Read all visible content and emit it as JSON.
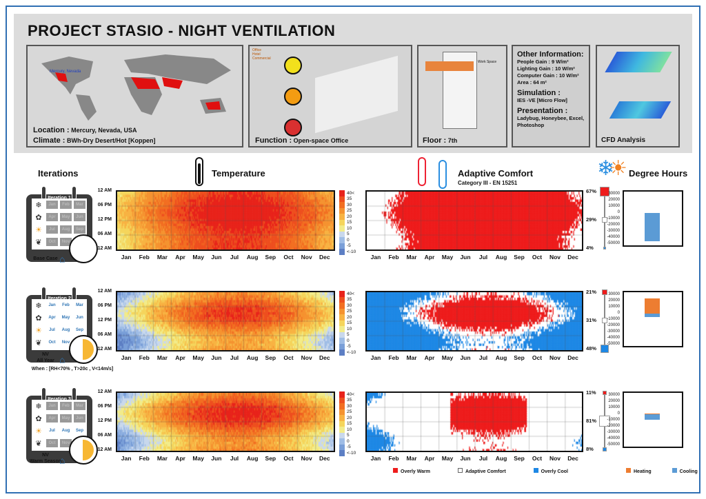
{
  "title": "PROJECT STASIO - NIGHT VENTILATION",
  "panels": {
    "location_label": "Location :",
    "location": "Mercury, Nevada, USA",
    "climate_label": "Climate :",
    "climate": "BWh-Dry Desert/Hot [Koppen]",
    "map_marker": "Mercury, Nevada",
    "function_label": "Function :",
    "function": "Open-space Office",
    "function_legend": [
      "Office",
      "Hotel",
      "Commercial"
    ],
    "floor_label": "Floor :",
    "floor": "7th",
    "floor_tag": "Work Space",
    "other_title": "Other Information:",
    "other": [
      "People Gain : 9 W/m²",
      "Lighting Gain : 10 W/m²",
      "Computer Gain : 10 W/m²",
      "Area : 64 m²"
    ],
    "simulation_title": "Simulation :",
    "simulation": "IES -VE   [Micro Flow]",
    "presentation_title": "Presentation :",
    "presentation": "Ladybug, Honeybee, Excel, Photoshop",
    "cfd_label": "CFD Analysis"
  },
  "sections": {
    "iterations": "Iterations",
    "temperature": "Temperature",
    "comfort": "Adaptive Comfort",
    "comfort_sub": "Category III - EN  15251",
    "degree": "Degree Hours"
  },
  "iterations": [
    {
      "title": "Iteration 1",
      "label": "Base Case",
      "label2": "",
      "active_months": []
    },
    {
      "title": "Iteration 2",
      "label": "NV",
      "label2": "All Year",
      "when": "When : [RH<70% , T>20c , V<14m/s]",
      "active_months": [
        "Jan",
        "Feb",
        "Mar",
        "Apr",
        "May",
        "Jun",
        "Jul",
        "Aug",
        "Sep",
        "Oct",
        "Nov",
        "Dec"
      ]
    },
    {
      "title": "Iteration 3",
      "label": "NV",
      "label2": "Warm Season",
      "active_months": [
        "Jul",
        "Aug",
        "Sep"
      ]
    }
  ],
  "months": [
    "Jan",
    "Feb",
    "Mar",
    "Apr",
    "May",
    "Jun",
    "Jul",
    "Aug",
    "Sep",
    "Oct",
    "Nov",
    "Dec"
  ],
  "hours": [
    "12 AM",
    "06 PM",
    "12 PM",
    "06 AM",
    "12 AM"
  ],
  "temp_scale": {
    "labels": [
      "40<",
      "35",
      "30",
      "25",
      "20",
      "15",
      "10",
      "5",
      "0",
      "-5",
      "<-10"
    ],
    "colors": [
      "#e8231b",
      "#ee4f1f",
      "#f26f22",
      "#f59330",
      "#f8b343",
      "#f5d55c",
      "#f2ec8a",
      "#c9d8ec",
      "#9fbde6",
      "#7a9fd8",
      "#5d7fc4"
    ]
  },
  "comfort_legend": {
    "warm": "Overly Warm",
    "comfort": "Adaptive Comfort",
    "cool": "Overly Cool",
    "colors": {
      "warm": "#ee1c1c",
      "comfort": "#ffffff",
      "cool": "#1e88e5"
    }
  },
  "degree_legend": {
    "heating": "Heating",
    "cooling": "Cooling",
    "colors": {
      "heating": "#ed7d31",
      "cooling": "#5b9bd5"
    }
  },
  "chart_data": [
    {
      "type": "heatmap",
      "title": "Temperature",
      "x": [
        "Jan",
        "Feb",
        "Mar",
        "Apr",
        "May",
        "Jun",
        "Jul",
        "Aug",
        "Sep",
        "Oct",
        "Nov",
        "Dec"
      ],
      "y": [
        "12 AM",
        "06 PM",
        "12 PM",
        "06 AM",
        "12 AM"
      ],
      "scale": [
        "<-10",
        "40<"
      ],
      "iteration": "Iteration 1"
    },
    {
      "type": "heatmap",
      "title": "Temperature",
      "x": [
        "Jan",
        "Feb",
        "Mar",
        "Apr",
        "May",
        "Jun",
        "Jul",
        "Aug",
        "Sep",
        "Oct",
        "Nov",
        "Dec"
      ],
      "y": [
        "12 AM",
        "06 PM",
        "12 PM",
        "06 AM",
        "12 AM"
      ],
      "scale": [
        "<-10",
        "40<"
      ],
      "iteration": "Iteration 2"
    },
    {
      "type": "heatmap",
      "title": "Temperature",
      "x": [
        "Jan",
        "Feb",
        "Mar",
        "Apr",
        "May",
        "Jun",
        "Jul",
        "Aug",
        "Sep",
        "Oct",
        "Nov",
        "Dec"
      ],
      "y": [
        "12 AM",
        "06 PM",
        "12 PM",
        "06 AM",
        "12 AM"
      ],
      "scale": [
        "<-10",
        "40<"
      ],
      "iteration": "Iteration 3"
    },
    {
      "type": "heatmap",
      "title": "Adaptive Comfort",
      "iteration": "Iteration 1",
      "percentages": {
        "warm": "67%",
        "comfort": "29%",
        "cool": "4%"
      }
    },
    {
      "type": "heatmap",
      "title": "Adaptive Comfort",
      "iteration": "Iteration 2",
      "percentages": {
        "warm": "21%",
        "comfort": "31%",
        "cool": "48%"
      }
    },
    {
      "type": "heatmap",
      "title": "Adaptive Comfort",
      "iteration": "Iteration 3",
      "percentages": {
        "warm": "11%",
        "comfort": "81%",
        "cool": "8%"
      }
    },
    {
      "type": "bar",
      "title": "Degree Hours",
      "iteration": "Iteration 1",
      "series": [
        {
          "name": "Heating",
          "values": [
            500
          ]
        },
        {
          "name": "Cooling",
          "values": [
            -46000
          ]
        }
      ],
      "ylim": [
        -50000,
        30000
      ],
      "yticks": [
        "30000",
        "20000",
        "10000",
        "0",
        "-10000",
        "-20000",
        "-30000",
        "-40000",
        "-50000"
      ]
    },
    {
      "type": "bar",
      "title": "Degree Hours",
      "iteration": "Iteration 2",
      "series": [
        {
          "name": "Heating",
          "values": [
            25000
          ]
        },
        {
          "name": "Cooling",
          "values": [
            -6000
          ]
        }
      ],
      "ylim": [
        -50000,
        30000
      ],
      "yticks": [
        "30000",
        "20000",
        "10000",
        "0",
        "-10000",
        "-20000",
        "-30000",
        "-40000",
        "-50000"
      ]
    },
    {
      "type": "bar",
      "title": "Degree Hours",
      "iteration": "Iteration 3",
      "series": [
        {
          "name": "Heating",
          "values": [
            1000
          ]
        },
        {
          "name": "Cooling",
          "values": [
            -9000
          ]
        }
      ],
      "ylim": [
        -50000,
        30000
      ],
      "yticks": [
        "30000",
        "20000",
        "10000",
        "0",
        "-10000",
        "-20000",
        "-30000",
        "-40000",
        "-50000"
      ]
    }
  ]
}
